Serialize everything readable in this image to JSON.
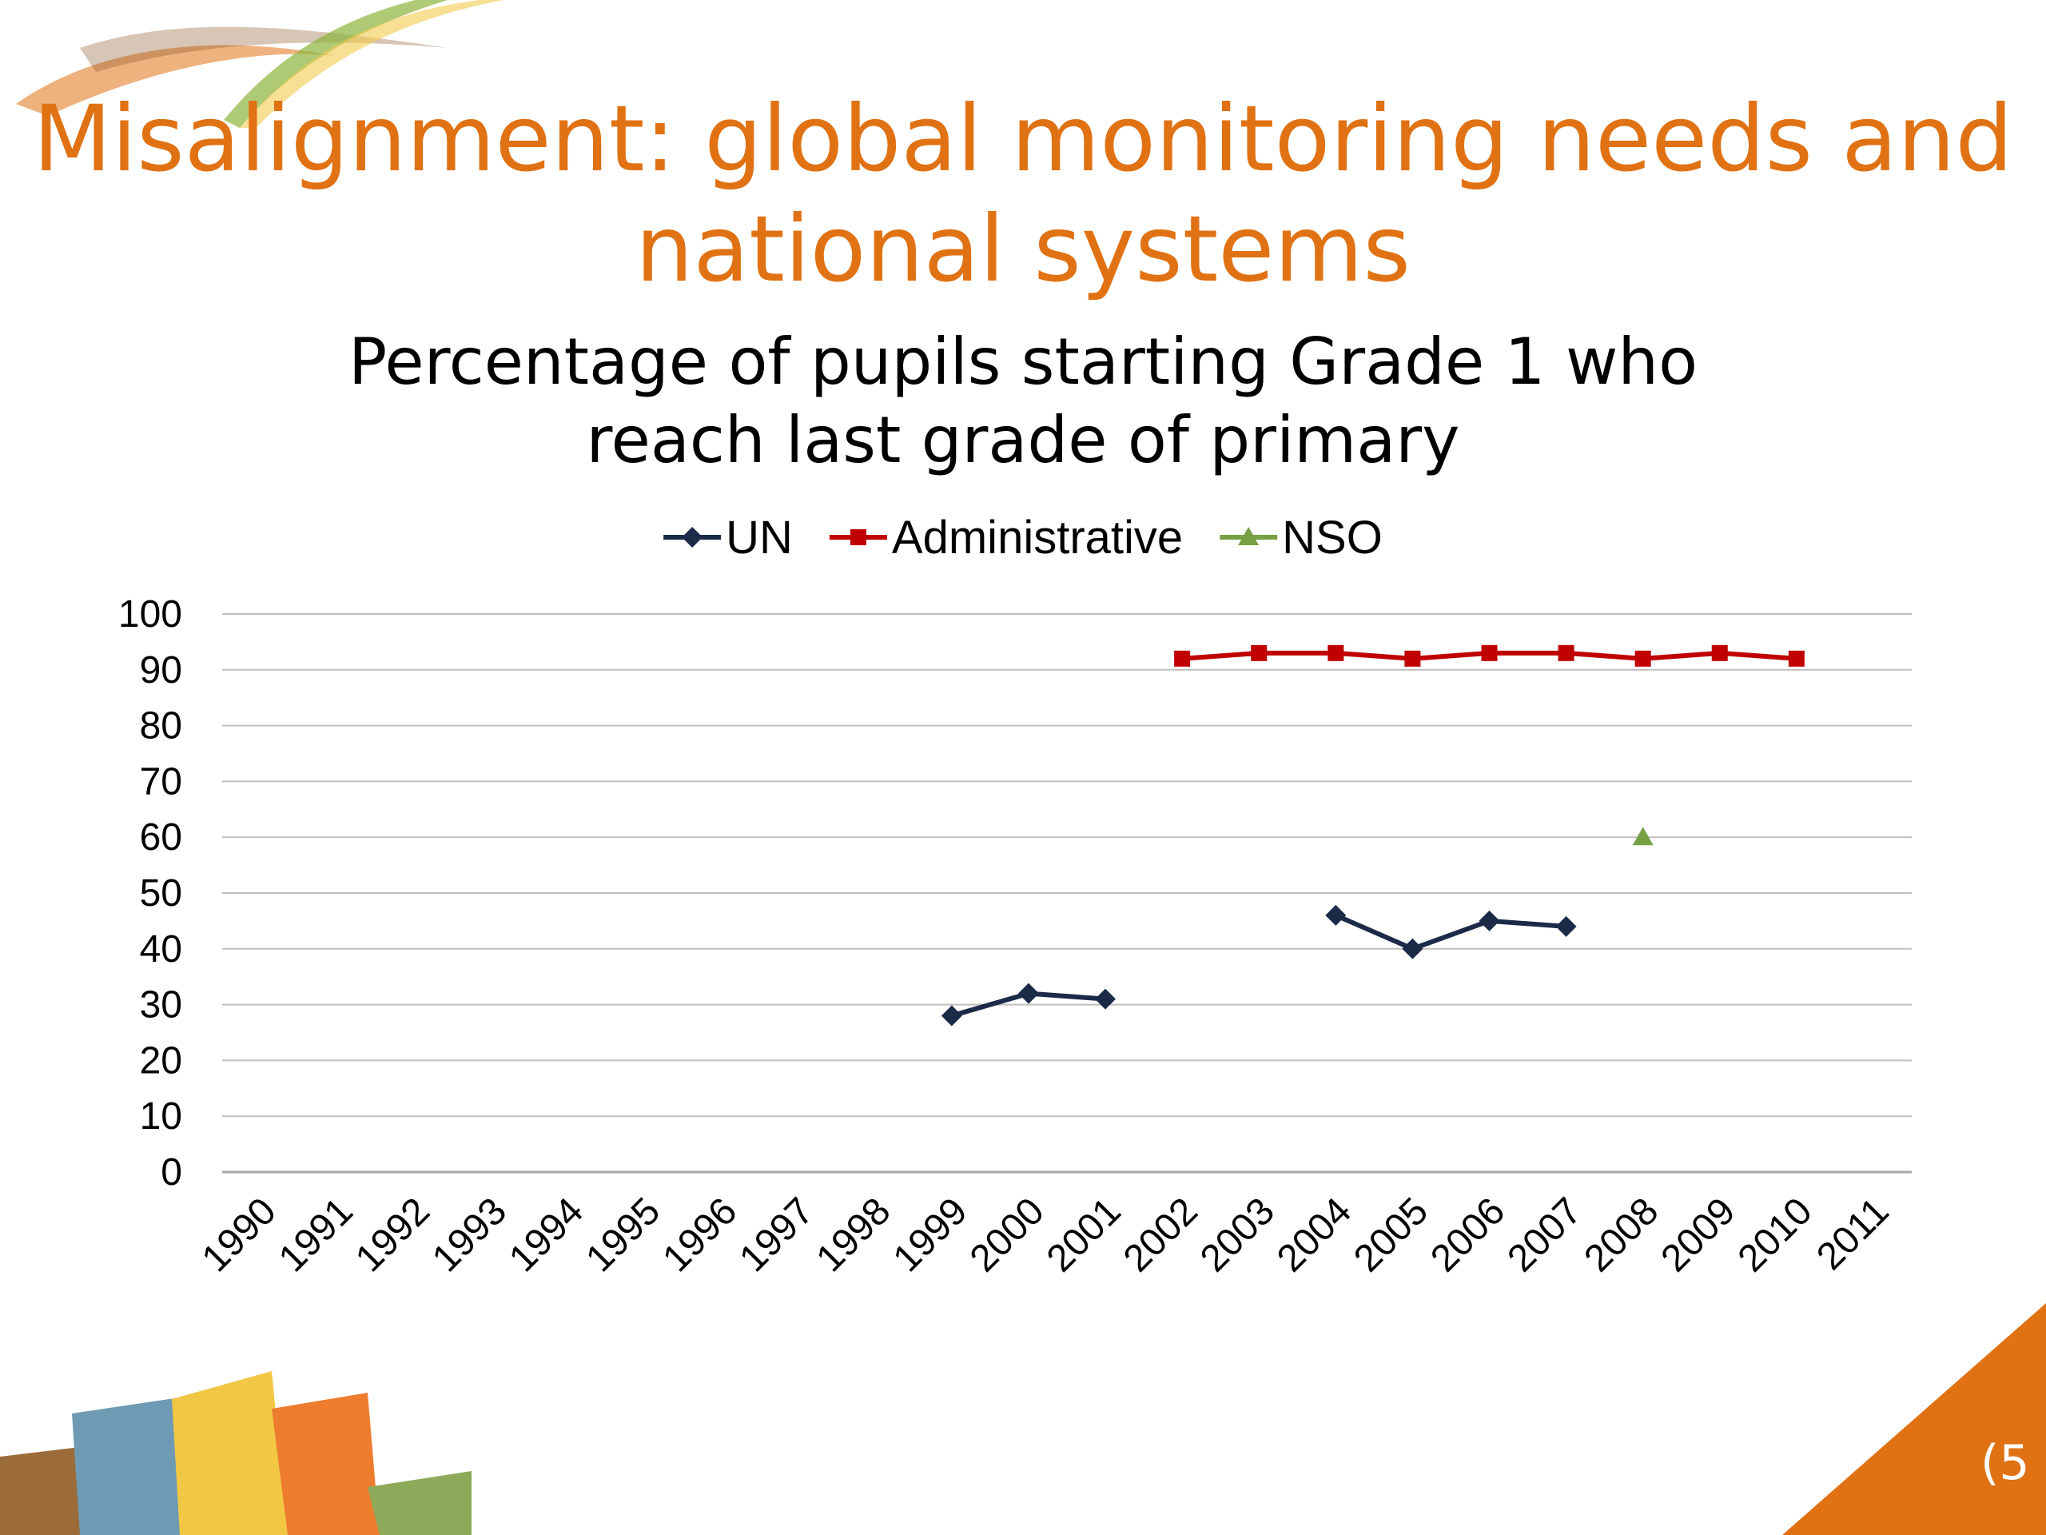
{
  "slide": {
    "title_line1": "Misalignment: global monitoring needs and",
    "title_line2": "national systems",
    "page_number": "5",
    "accent_color": "#E07214"
  },
  "chart_data": {
    "type": "line",
    "title_line1": "Percentage of  pupils starting Grade 1 who",
    "title_line2": "reach last grade of primary",
    "xlabel": "",
    "ylabel": "",
    "ylim": [
      0,
      100
    ],
    "yticks": [
      0,
      10,
      20,
      30,
      40,
      50,
      60,
      70,
      80,
      90,
      100
    ],
    "grid": true,
    "legend": "top-center",
    "categories": [
      "1990",
      "1991",
      "1992",
      "1993",
      "1994",
      "1995",
      "1996",
      "1997",
      "1998",
      "1999",
      "2000",
      "2001",
      "2002",
      "2003",
      "2004",
      "2005",
      "2006",
      "2007",
      "2008",
      "2009",
      "2010",
      "2011"
    ],
    "series": [
      {
        "name": "UN",
        "color": "#1B2A47",
        "marker": "diamond",
        "values": [
          null,
          null,
          null,
          null,
          null,
          null,
          null,
          null,
          null,
          28,
          32,
          31,
          null,
          null,
          46,
          40,
          45,
          44,
          null,
          null,
          null,
          null
        ]
      },
      {
        "name": "Administrative",
        "color": "#C00000",
        "marker": "square",
        "values": [
          null,
          null,
          null,
          null,
          null,
          null,
          null,
          null,
          null,
          null,
          null,
          null,
          92,
          93,
          93,
          92,
          93,
          93,
          92,
          93,
          92,
          null
        ]
      },
      {
        "name": "NSO",
        "color": "#77A045",
        "marker": "triangle",
        "values": [
          null,
          null,
          null,
          null,
          null,
          null,
          null,
          null,
          null,
          null,
          null,
          null,
          null,
          null,
          null,
          null,
          null,
          null,
          60,
          null,
          null,
          null
        ]
      }
    ]
  }
}
